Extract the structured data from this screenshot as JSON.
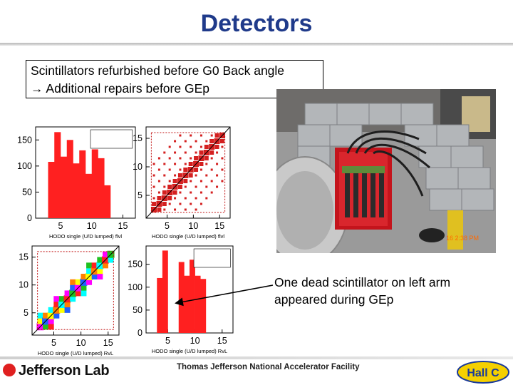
{
  "slide": {
    "title": "Detectors",
    "callout_line1": "Scintillators refurbished before G0 Back angle",
    "callout_line2": "→ Additional repairs before GEp",
    "note": "One dead scintillator on left arm appeared during GEp"
  },
  "footer": {
    "org": "Jefferson Lab",
    "facility": "Thomas Jefferson National Accelerator Facility",
    "logo_text": "Hall C"
  },
  "colors": {
    "title": "#1f3a8a",
    "hist": "#ff2020",
    "corr": "#d42020"
  },
  "chart_data": [
    {
      "type": "bar",
      "xlabel": "HODO single (U/D lumped) flvl",
      "yticks": [
        "0",
        "50",
        "100",
        "150"
      ],
      "xticks": [
        "5",
        "10",
        "15"
      ],
      "ylim": [
        0,
        175
      ],
      "xlim": [
        1,
        17
      ],
      "values": [
        0,
        0,
        108,
        165,
        118,
        150,
        105,
        130,
        85,
        132,
        115,
        63,
        0,
        0,
        0,
        0
      ]
    },
    {
      "type": "heatmap",
      "xlabel": "HODO single (U/D lumped) flvl",
      "yticks": [
        "5",
        "10",
        "15"
      ],
      "xticks": [
        "5",
        "10",
        "15"
      ],
      "xlim": [
        1,
        17
      ],
      "ylim": [
        1,
        17
      ]
    },
    {
      "type": "heatmap",
      "xlabel": "HODO single (U/D lumped) RvL",
      "yticks": [
        "5",
        "10",
        "15"
      ],
      "xticks": [
        "5",
        "10",
        "15"
      ],
      "xlim": [
        1,
        17
      ],
      "ylim": [
        1,
        17
      ]
    },
    {
      "type": "bar",
      "xlabel": "HODO single (U/D lumped) RvL",
      "yticks": [
        "0",
        "50",
        "100",
        "150"
      ],
      "xticks": [
        "5",
        "10",
        "15"
      ],
      "ylim": [
        0,
        190
      ],
      "xlim": [
        1,
        17
      ],
      "values": [
        0,
        0,
        120,
        180,
        0,
        0,
        155,
        125,
        160,
        125,
        118,
        0,
        0,
        0,
        0,
        0
      ]
    }
  ]
}
